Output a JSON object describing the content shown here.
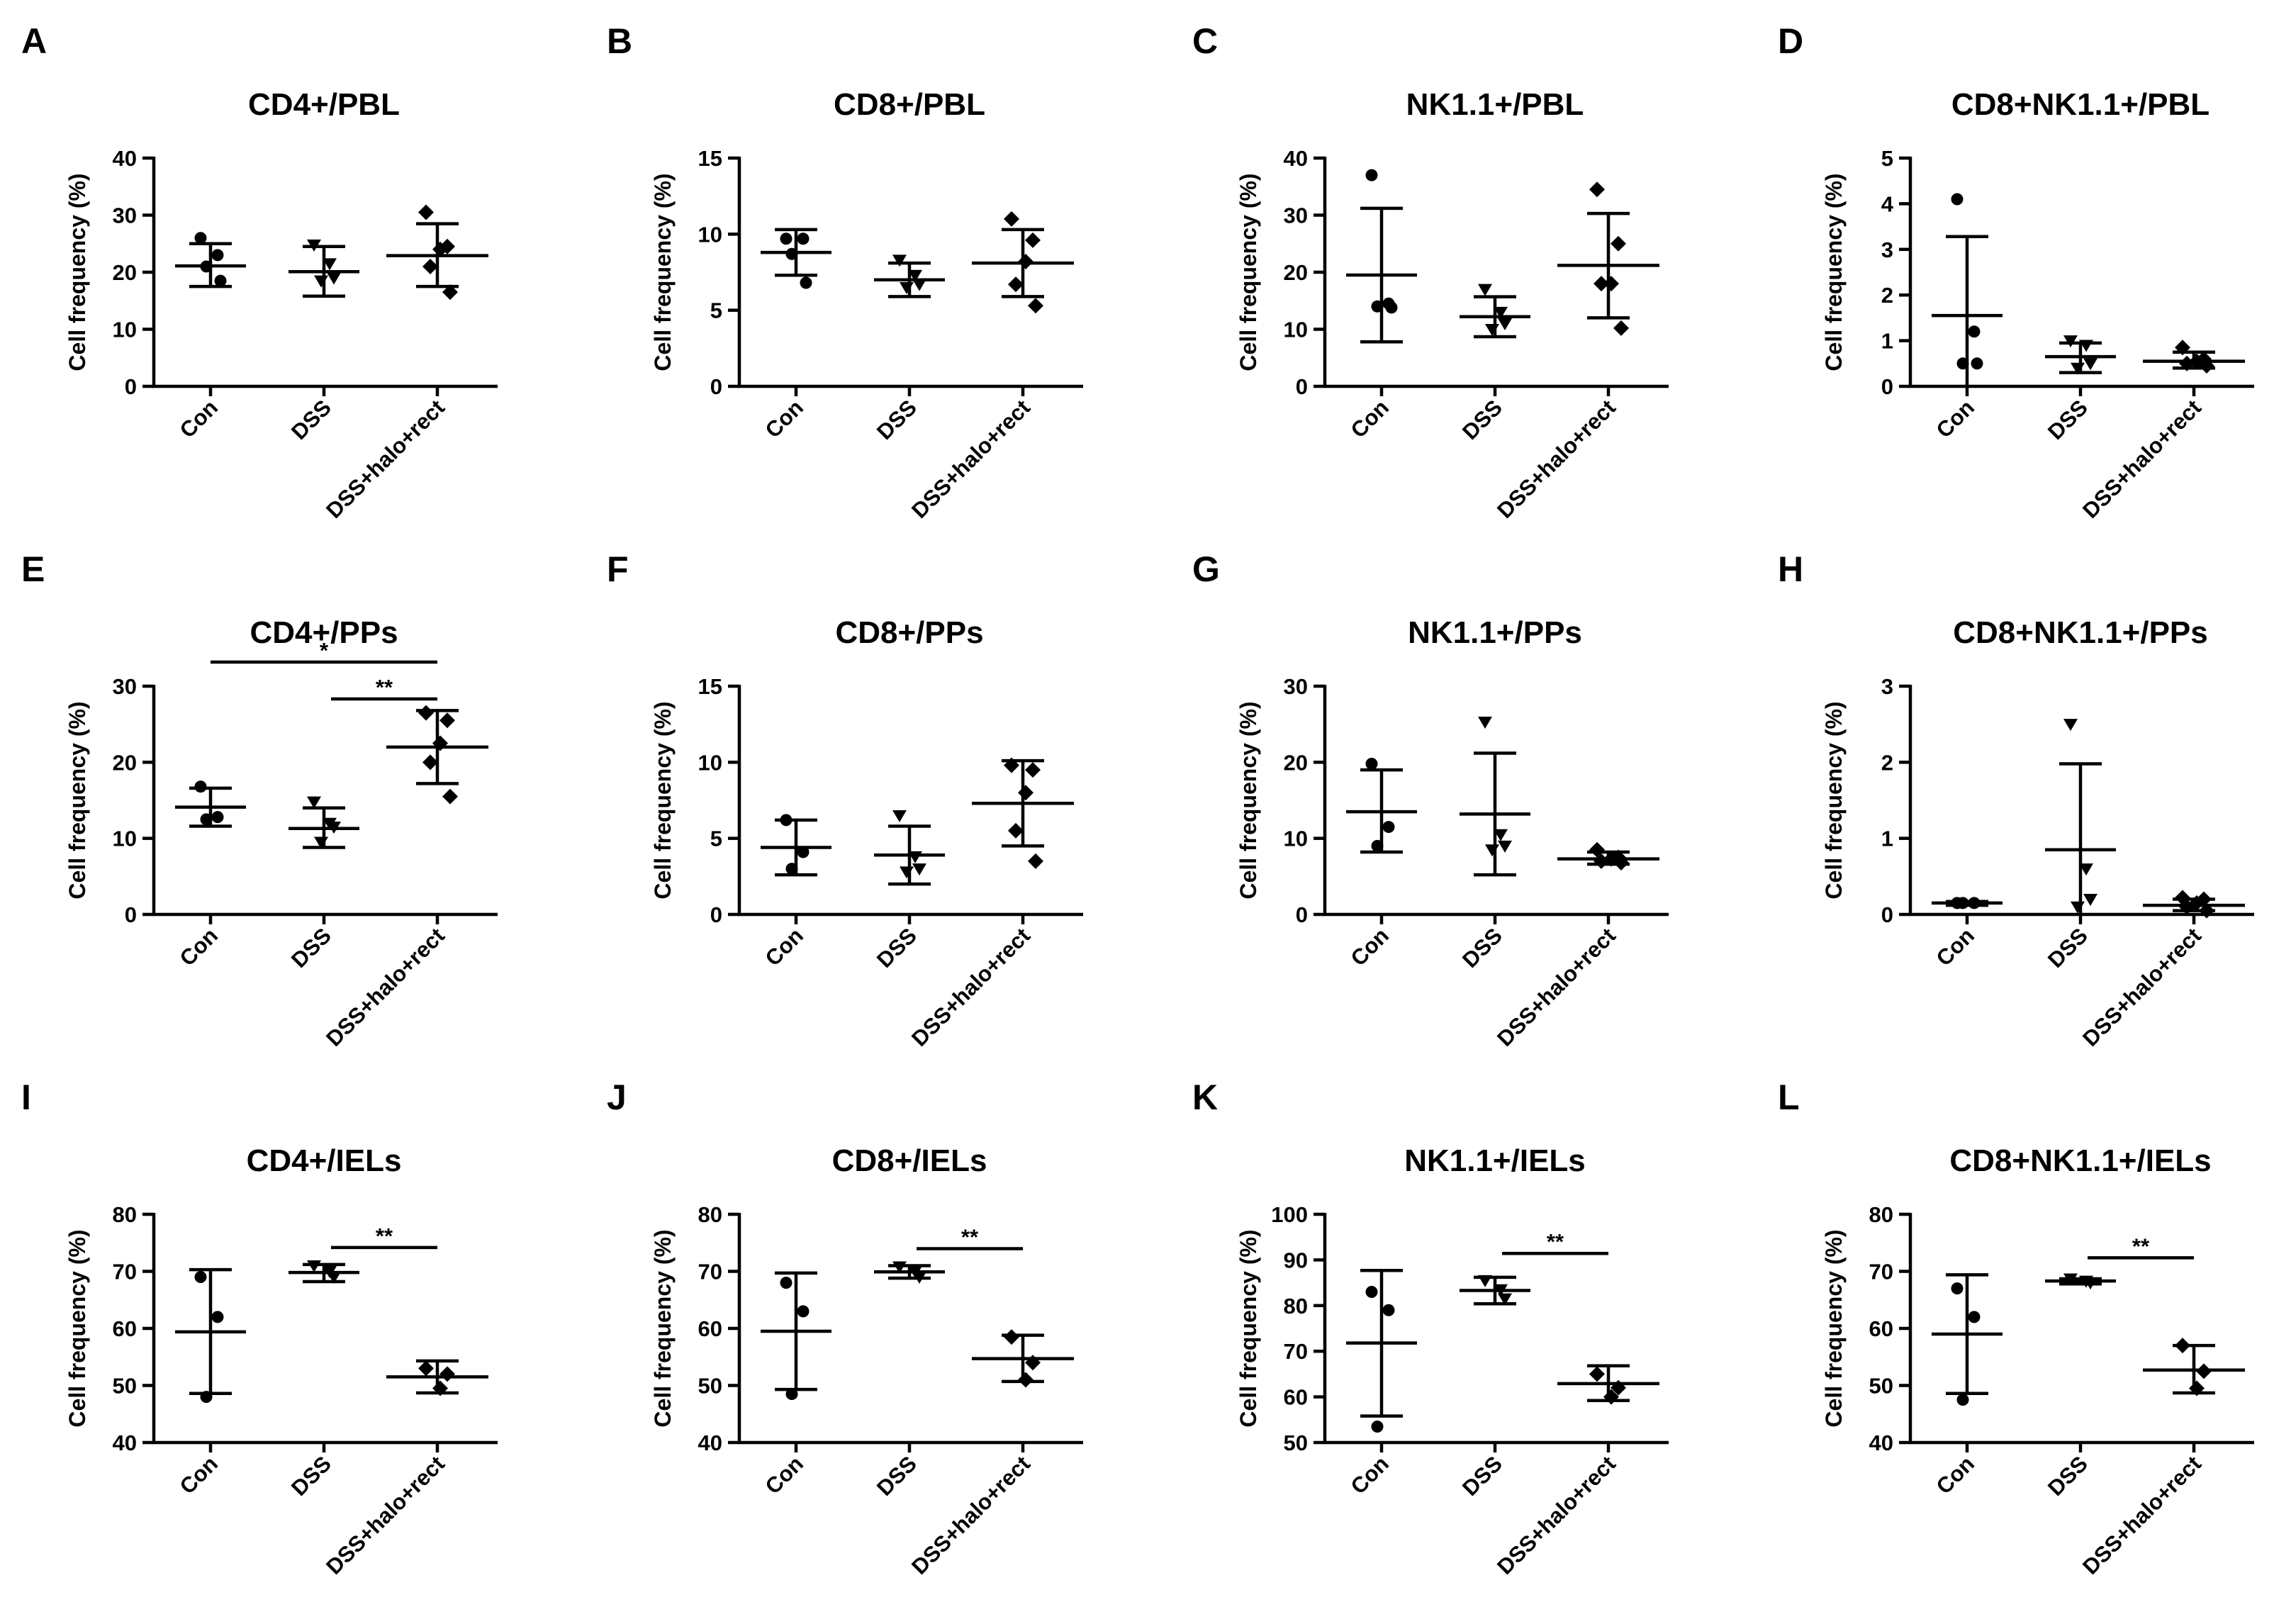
{
  "figure": {
    "ylabel": "Cell frequency (%)",
    "categories": [
      "Con",
      "DSS",
      "DSS+halo+rect"
    ],
    "marker_shapes": [
      "circle",
      "triangle-down",
      "diamond"
    ],
    "colors": {
      "ink": "#000000",
      "background": "#ffffff"
    }
  },
  "chart_data": [
    {
      "panel": "A",
      "title": "CD4+/PBL",
      "type": "scatter",
      "ylabel": "Cell frequency (%)",
      "ylim": [
        0,
        40
      ],
      "yticks": [
        0,
        10,
        20,
        30,
        40
      ],
      "categories": [
        "Con",
        "DSS",
        "DSS+halo+rect"
      ],
      "series": [
        {
          "name": "Con",
          "points": [
            26,
            23,
            21,
            18.5
          ],
          "mean": 21.1,
          "sd_low": 17.5,
          "sd_high": 25
        },
        {
          "name": "DSS",
          "points": [
            24.8,
            21.5,
            19,
            18.5
          ],
          "mean": 20.1,
          "sd_low": 15.8,
          "sd_high": 24.5
        },
        {
          "name": "DSS+halo+rect",
          "points": [
            30.5,
            24.5,
            24,
            21,
            16.5
          ],
          "mean": 22.9,
          "sd_low": 17.5,
          "sd_high": 28.5
        }
      ],
      "significance": []
    },
    {
      "panel": "B",
      "title": "CD8+/PBL",
      "type": "scatter",
      "ylabel": "Cell frequency (%)",
      "ylim": [
        0,
        15
      ],
      "yticks": [
        0,
        5,
        10,
        15
      ],
      "categories": [
        "Con",
        "DSS",
        "DSS+halo+rect"
      ],
      "series": [
        {
          "name": "Con",
          "points": [
            9.7,
            9.7,
            8.7,
            6.8
          ],
          "mean": 8.8,
          "sd_low": 7.3,
          "sd_high": 10.3
        },
        {
          "name": "DSS",
          "points": [
            8.3,
            7.3,
            6.7,
            6.5
          ],
          "mean": 7.0,
          "sd_low": 5.9,
          "sd_high": 8.1
        },
        {
          "name": "DSS+halo+rect",
          "points": [
            11.0,
            9.6,
            8.2,
            6.7,
            5.3
          ],
          "mean": 8.1,
          "sd_low": 5.9,
          "sd_high": 10.3
        }
      ],
      "significance": []
    },
    {
      "panel": "C",
      "title": "NK1.1+/PBL",
      "type": "scatter",
      "ylabel": "Cell frequency (%)",
      "ylim": [
        0,
        40
      ],
      "yticks": [
        0,
        10,
        20,
        30,
        40
      ],
      "categories": [
        "Con",
        "DSS",
        "DSS+halo+rect"
      ],
      "series": [
        {
          "name": "Con",
          "points": [
            37,
            14.5,
            14,
            13.8
          ],
          "mean": 19.5,
          "sd_low": 7.8,
          "sd_high": 31.2
        },
        {
          "name": "DSS",
          "points": [
            17,
            13,
            11,
            10
          ],
          "mean": 12.2,
          "sd_low": 8.7,
          "sd_high": 15.7
        },
        {
          "name": "DSS+halo+rect",
          "points": [
            34.5,
            25,
            18,
            18,
            10.2
          ],
          "mean": 21.2,
          "sd_low": 12,
          "sd_high": 30.3
        }
      ],
      "significance": []
    },
    {
      "panel": "D",
      "title": "CD8+NK1.1+/PBL",
      "type": "scatter",
      "ylabel": "Cell frequency (%)",
      "ylim": [
        0,
        5
      ],
      "yticks": [
        0,
        1,
        2,
        3,
        4,
        5
      ],
      "categories": [
        "Con",
        "DSS",
        "DSS+halo+rect"
      ],
      "series": [
        {
          "name": "Con",
          "points": [
            4.1,
            1.2,
            0.5,
            0.5
          ],
          "mean": 1.55,
          "sd_low": 0,
          "sd_high": 3.28
        },
        {
          "name": "DSS",
          "points": [
            1.0,
            0.9,
            0.5,
            0.4
          ],
          "mean": 0.65,
          "sd_low": 0.3,
          "sd_high": 0.95
        },
        {
          "name": "DSS+halo+rect",
          "points": [
            0.85,
            0.6,
            0.55,
            0.5,
            0.45
          ],
          "mean": 0.55,
          "sd_low": 0.4,
          "sd_high": 0.75
        }
      ],
      "significance": []
    },
    {
      "panel": "E",
      "title": "CD4+/PPs",
      "type": "scatter",
      "ylabel": "Cell frequency (%)",
      "ylim": [
        0,
        30
      ],
      "yticks": [
        0,
        10,
        20,
        30
      ],
      "categories": [
        "Con",
        "DSS",
        "DSS+halo+rect"
      ],
      "series": [
        {
          "name": "Con",
          "points": [
            16.8,
            12.8,
            12.5
          ],
          "mean": 14.1,
          "sd_low": 11.6,
          "sd_high": 16.6
        },
        {
          "name": "DSS",
          "points": [
            14.8,
            12.0,
            11.5,
            9.5
          ],
          "mean": 11.3,
          "sd_low": 8.8,
          "sd_high": 14.0
        },
        {
          "name": "DSS+halo+rect",
          "points": [
            26.5,
            25.5,
            22.5,
            20,
            15.5
          ],
          "mean": 22.0,
          "sd_low": 17.2,
          "sd_high": 26.8
        }
      ],
      "significance": [
        {
          "from": 0,
          "to": 2,
          "label": "*"
        },
        {
          "from": 1,
          "to": 2,
          "label": "**"
        }
      ]
    },
    {
      "panel": "F",
      "title": "CD8+/PPs",
      "type": "scatter",
      "ylabel": "Cell frequency (%)",
      "ylim": [
        0,
        15
      ],
      "yticks": [
        0,
        5,
        10,
        15
      ],
      "categories": [
        "Con",
        "DSS",
        "DSS+halo+rect"
      ],
      "series": [
        {
          "name": "Con",
          "points": [
            6.2,
            4.1,
            3.0
          ],
          "mean": 4.4,
          "sd_low": 2.6,
          "sd_high": 6.2
        },
        {
          "name": "DSS",
          "points": [
            6.5,
            3.8,
            3.0,
            2.8
          ],
          "mean": 3.9,
          "sd_low": 2.0,
          "sd_high": 5.8
        },
        {
          "name": "DSS+halo+rect",
          "points": [
            9.8,
            9.5,
            8.0,
            5.5,
            3.5
          ],
          "mean": 7.3,
          "sd_low": 4.5,
          "sd_high": 10.1
        }
      ],
      "significance": []
    },
    {
      "panel": "G",
      "title": "NK1.1+/PPs",
      "type": "scatter",
      "ylabel": "Cell frequency (%)",
      "ylim": [
        0,
        30
      ],
      "yticks": [
        0,
        10,
        20,
        30
      ],
      "categories": [
        "Con",
        "DSS",
        "DSS+halo+rect"
      ],
      "series": [
        {
          "name": "Con",
          "points": [
            19.8,
            11.5,
            9.0
          ],
          "mean": 13.5,
          "sd_low": 8.2,
          "sd_high": 19.0
        },
        {
          "name": "DSS",
          "points": [
            25.3,
            10.5,
            9.0,
            8.5
          ],
          "mean": 13.2,
          "sd_low": 5.2,
          "sd_high": 21.2
        },
        {
          "name": "DSS+halo+rect",
          "points": [
            8.5,
            7.5,
            7.3,
            7.0,
            6.8
          ],
          "mean": 7.3,
          "sd_low": 6.6,
          "sd_high": 8.2
        }
      ],
      "significance": []
    },
    {
      "panel": "H",
      "title": "CD8+NK1.1+/PPs",
      "type": "scatter",
      "ylabel": "Cell frequency (%)",
      "ylim": [
        0,
        3
      ],
      "yticks": [
        0,
        1,
        2,
        3
      ],
      "categories": [
        "Con",
        "DSS",
        "DSS+halo+rect"
      ],
      "series": [
        {
          "name": "Con",
          "points": [
            0.15,
            0.15,
            0.15
          ],
          "mean": 0.15,
          "sd_low": 0.12,
          "sd_high": 0.17
        },
        {
          "name": "DSS",
          "points": [
            2.5,
            0.6,
            0.2,
            0.1
          ],
          "mean": 0.85,
          "sd_low": 0,
          "sd_high": 1.98
        },
        {
          "name": "DSS+halo+rect",
          "points": [
            0.22,
            0.2,
            0.15,
            0.1,
            0.05
          ],
          "mean": 0.12,
          "sd_low": 0.05,
          "sd_high": 0.2
        }
      ],
      "significance": []
    },
    {
      "panel": "I",
      "title": "CD4+/IELs",
      "type": "scatter",
      "ylabel": "Cell frequency (%)",
      "ylim": [
        40,
        80
      ],
      "yticks": [
        40,
        50,
        60,
        70,
        80
      ],
      "categories": [
        "Con",
        "DSS",
        "DSS+halo+rect"
      ],
      "series": [
        {
          "name": "Con",
          "points": [
            69,
            62,
            48
          ],
          "mean": 59.4,
          "sd_low": 48.6,
          "sd_high": 70.3
        },
        {
          "name": "DSS",
          "points": [
            71,
            70,
            69
          ],
          "mean": 69.8,
          "sd_low": 68.2,
          "sd_high": 71.2
        },
        {
          "name": "DSS+halo+rect",
          "points": [
            53,
            52,
            49.5
          ],
          "mean": 51.5,
          "sd_low": 48.7,
          "sd_high": 54.3
        }
      ],
      "significance": [
        {
          "from": 1,
          "to": 2,
          "label": "**"
        }
      ]
    },
    {
      "panel": "J",
      "title": "CD8+/IELs",
      "type": "scatter",
      "ylabel": "Cell frequency (%)",
      "ylim": [
        40,
        80
      ],
      "yticks": [
        40,
        50,
        60,
        70,
        80
      ],
      "categories": [
        "Con",
        "DSS",
        "DSS+halo+rect"
      ],
      "series": [
        {
          "name": "Con",
          "points": [
            68,
            63,
            48.5
          ],
          "mean": 59.5,
          "sd_low": 49.3,
          "sd_high": 69.7
        },
        {
          "name": "DSS",
          "points": [
            70.8,
            70,
            69
          ],
          "mean": 69.9,
          "sd_low": 68.8,
          "sd_high": 71
        },
        {
          "name": "DSS+halo+rect",
          "points": [
            58.5,
            54,
            51
          ],
          "mean": 54.7,
          "sd_low": 50.7,
          "sd_high": 58.8
        }
      ],
      "significance": [
        {
          "from": 1,
          "to": 2,
          "label": "**"
        }
      ]
    },
    {
      "panel": "K",
      "title": "NK1.1+/IELs",
      "type": "scatter",
      "ylabel": "Cell frequency (%)",
      "ylim": [
        50,
        100
      ],
      "yticks": [
        50,
        60,
        70,
        80,
        90,
        100
      ],
      "categories": [
        "Con",
        "DSS",
        "DSS+halo+rect"
      ],
      "series": [
        {
          "name": "Con",
          "points": [
            83,
            79,
            53.5
          ],
          "mean": 71.8,
          "sd_low": 55.8,
          "sd_high": 87.7
        },
        {
          "name": "DSS",
          "points": [
            85.5,
            83.5,
            81.5
          ],
          "mean": 83.3,
          "sd_low": 80.4,
          "sd_high": 86.2
        },
        {
          "name": "DSS+halo+rect",
          "points": [
            65,
            62,
            60
          ],
          "mean": 62.9,
          "sd_low": 59.2,
          "sd_high": 66.8
        }
      ],
      "significance": [
        {
          "from": 1,
          "to": 2,
          "label": "**"
        }
      ]
    },
    {
      "panel": "L",
      "title": "CD8+NK1.1+/IELs",
      "type": "scatter",
      "ylabel": "Cell frequency (%)",
      "ylim": [
        40,
        80
      ],
      "yticks": [
        40,
        50,
        60,
        70,
        80
      ],
      "categories": [
        "Con",
        "DSS",
        "DSS+halo+rect"
      ],
      "series": [
        {
          "name": "Con",
          "points": [
            67,
            62,
            47.5
          ],
          "mean": 59.0,
          "sd_low": 48.6,
          "sd_high": 69.4
        },
        {
          "name": "DSS",
          "points": [
            68.7,
            68.3,
            68
          ],
          "mean": 68.3,
          "sd_low": 67.8,
          "sd_high": 68.7
        },
        {
          "name": "DSS+halo+rect",
          "points": [
            57,
            52.5,
            49.5
          ],
          "mean": 52.7,
          "sd_low": 48.7,
          "sd_high": 57.0
        }
      ],
      "significance": [
        {
          "from": 1,
          "to": 2,
          "label": "**"
        }
      ]
    }
  ]
}
